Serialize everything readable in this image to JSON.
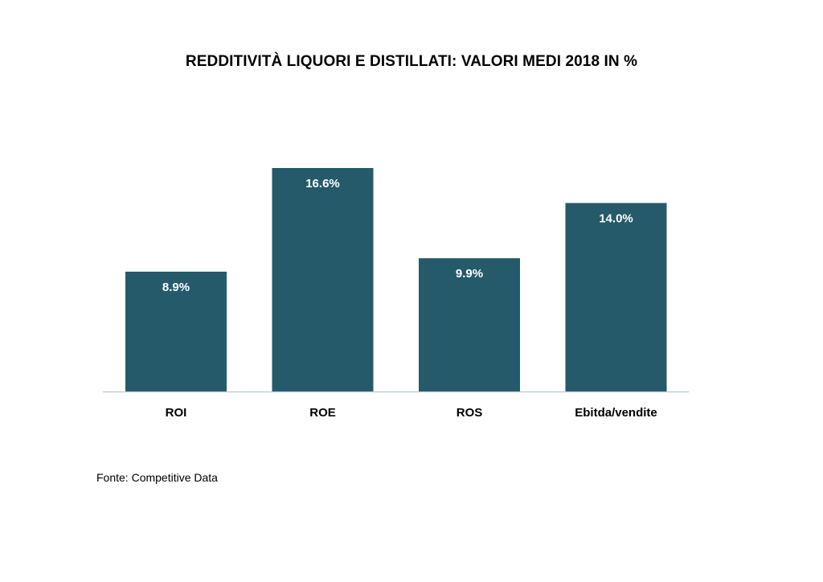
{
  "chart_data": {
    "type": "bar",
    "title": "REDDITIVITÀ LIQUORI E DISTILLATI: VALORI MEDI 2018 IN %",
    "categories": [
      "ROI",
      "ROE",
      "ROS",
      "Ebitda/vendite"
    ],
    "values": [
      8.9,
      16.6,
      9.9,
      14.0
    ],
    "data_labels": [
      "8.9%",
      "16.6%",
      "9.9%",
      "14.0%"
    ],
    "xlabel": "",
    "ylabel": "",
    "ylim": [
      0,
      16.6
    ],
    "grid": false,
    "legend": "none",
    "bar_color": "#245a6a",
    "axis_color": "#b7c9d9"
  },
  "footer": {
    "source": "Fonte: Competitive Data"
  }
}
